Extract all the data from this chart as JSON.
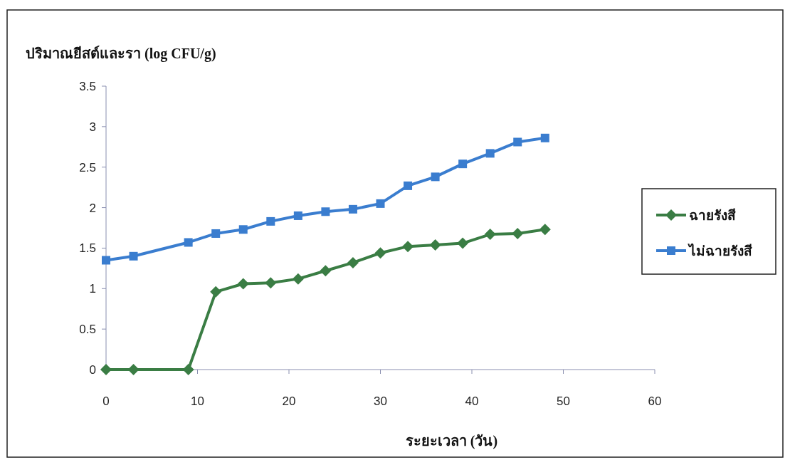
{
  "chart_data": {
    "type": "line",
    "ylabel": "ปริมาณยีสต์และรา (log CFU/g)",
    "xlabel": "ระยะเวลา (วัน)",
    "x": [
      0,
      3,
      9,
      12,
      15,
      18,
      21,
      24,
      27,
      30,
      33,
      36,
      39,
      42,
      45,
      48
    ],
    "series": [
      {
        "name": "ฉายรังสี",
        "color": "#3a7d44",
        "marker": "diamond",
        "values": [
          0,
          0,
          0,
          0.96,
          1.06,
          1.07,
          1.12,
          1.22,
          1.32,
          1.44,
          1.52,
          1.54,
          1.56,
          1.67,
          1.68,
          1.73
        ]
      },
      {
        "name": "ไม่ฉายรังสี",
        "color": "#3a7dcf",
        "marker": "square",
        "values": [
          1.35,
          1.4,
          1.57,
          1.68,
          1.73,
          1.83,
          1.9,
          1.95,
          1.98,
          2.05,
          2.27,
          2.38,
          2.54,
          2.67,
          2.81,
          2.86
        ]
      }
    ],
    "xlim": [
      0,
      60
    ],
    "xticks": [
      0,
      10,
      20,
      30,
      40,
      50,
      60
    ],
    "ylim": [
      0,
      3.5
    ],
    "yticks": [
      0,
      0.5,
      1,
      1.5,
      2,
      2.5,
      3,
      3.5
    ],
    "legend": "right",
    "grid": false
  }
}
